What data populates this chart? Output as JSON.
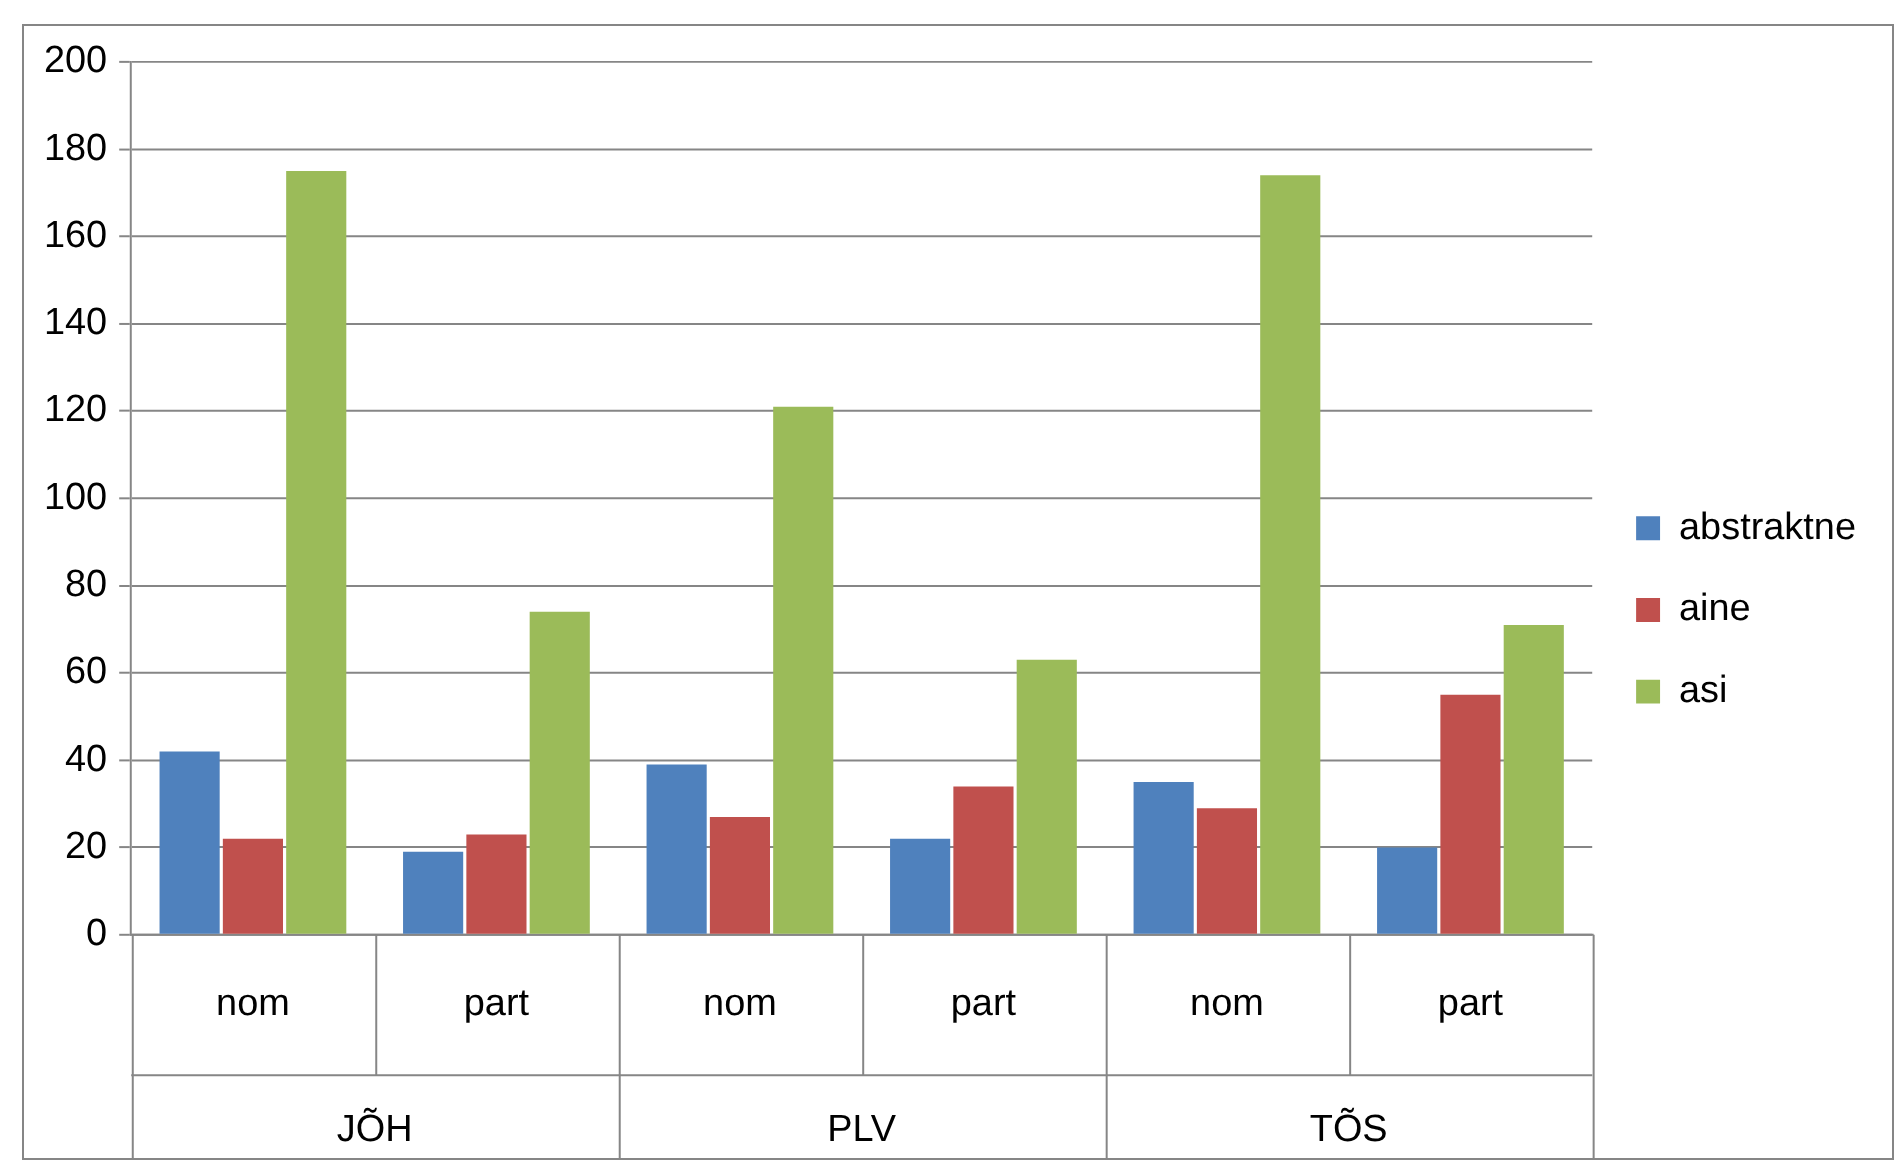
{
  "chart_data": {
    "type": "bar",
    "categories": [
      "nom",
      "part",
      "nom",
      "part",
      "nom",
      "part"
    ],
    "annotations": [
      "JÕH",
      "PLV",
      "TÕS"
    ],
    "series": [
      {
        "name": "abstraktne",
        "color": "#4f81bd",
        "values": [
          42,
          19,
          39,
          22,
          35,
          20
        ]
      },
      {
        "name": "aine",
        "color": "#c0504d",
        "values": [
          22,
          23,
          27,
          34,
          29,
          55
        ]
      },
      {
        "name": "asi",
        "color": "#9bbb59",
        "values": [
          175,
          74,
          121,
          63,
          174,
          71
        ]
      }
    ],
    "ylim": [
      0,
      200
    ],
    "yticks": [
      0,
      20,
      40,
      60,
      80,
      100,
      120,
      140,
      160,
      180,
      200
    ],
    "grid": "y",
    "legend": "right"
  }
}
